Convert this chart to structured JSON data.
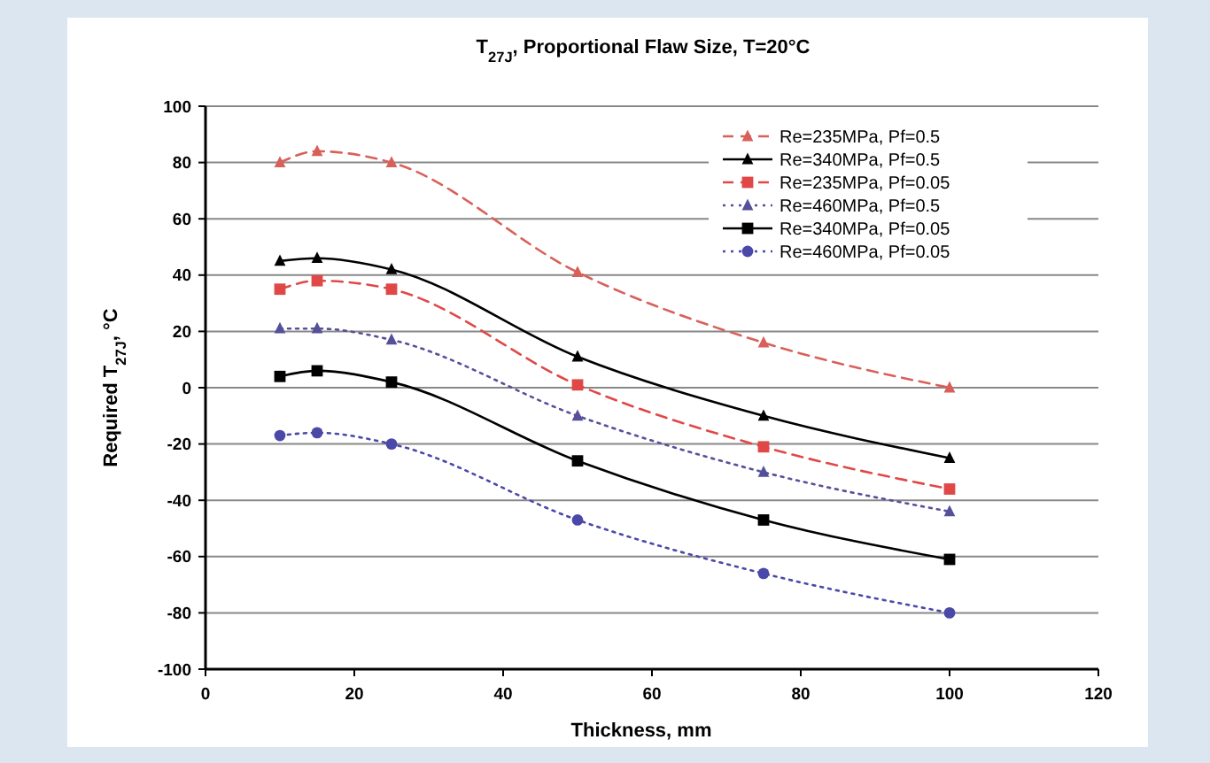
{
  "chart_data": {
    "type": "line",
    "title": "T$_{27J}$, Proportional Flaw Size, T=20°C",
    "xlabel": "Thickness, mm",
    "ylabel": "Required T$_{27J}$, °C",
    "x": [
      10,
      15,
      25,
      50,
      75,
      100
    ],
    "series": [
      {
        "name": "Re=235MPa, Pf=0.5",
        "color": "#d9605a",
        "line_style": "dashed",
        "marker": "triangle",
        "values": [
          80,
          84,
          80,
          41,
          16,
          0
        ]
      },
      {
        "name": "Re=340MPa, Pf=0.5",
        "color": "#000000",
        "line_style": "solid",
        "marker": "triangle",
        "values": [
          45,
          46,
          42,
          11,
          -10,
          -25
        ]
      },
      {
        "name": "Re=235MPa, Pf=0.05",
        "color": "#e04848",
        "line_style": "dashed",
        "marker": "square",
        "values": [
          35,
          38,
          35,
          1,
          -21,
          -36
        ]
      },
      {
        "name": "Re=460MPa, Pf=0.5",
        "color": "#55509a",
        "line_style": "dotted",
        "marker": "triangle",
        "values": [
          21,
          21,
          17,
          -10,
          -30,
          -44
        ]
      },
      {
        "name": "Re=340MPa, Pf=0.05",
        "color": "#000000",
        "line_style": "solid",
        "marker": "square",
        "values": [
          4,
          6,
          2,
          -26,
          -47,
          -61
        ]
      },
      {
        "name": "Re=460MPa, Pf=0.05",
        "color": "#4a48a8",
        "line_style": "dotted",
        "marker": "circle",
        "values": [
          -17,
          -16,
          -20,
          -47,
          -66,
          -80
        ]
      }
    ],
    "xlim": [
      0,
      120
    ],
    "xticks": [
      0,
      20,
      40,
      60,
      80,
      100,
      120
    ],
    "ylim": [
      -100,
      100
    ],
    "yticks": [
      -100,
      -80,
      -60,
      -40,
      -20,
      0,
      20,
      40,
      60,
      80,
      100
    ],
    "grid": "y",
    "legend": "top right"
  }
}
